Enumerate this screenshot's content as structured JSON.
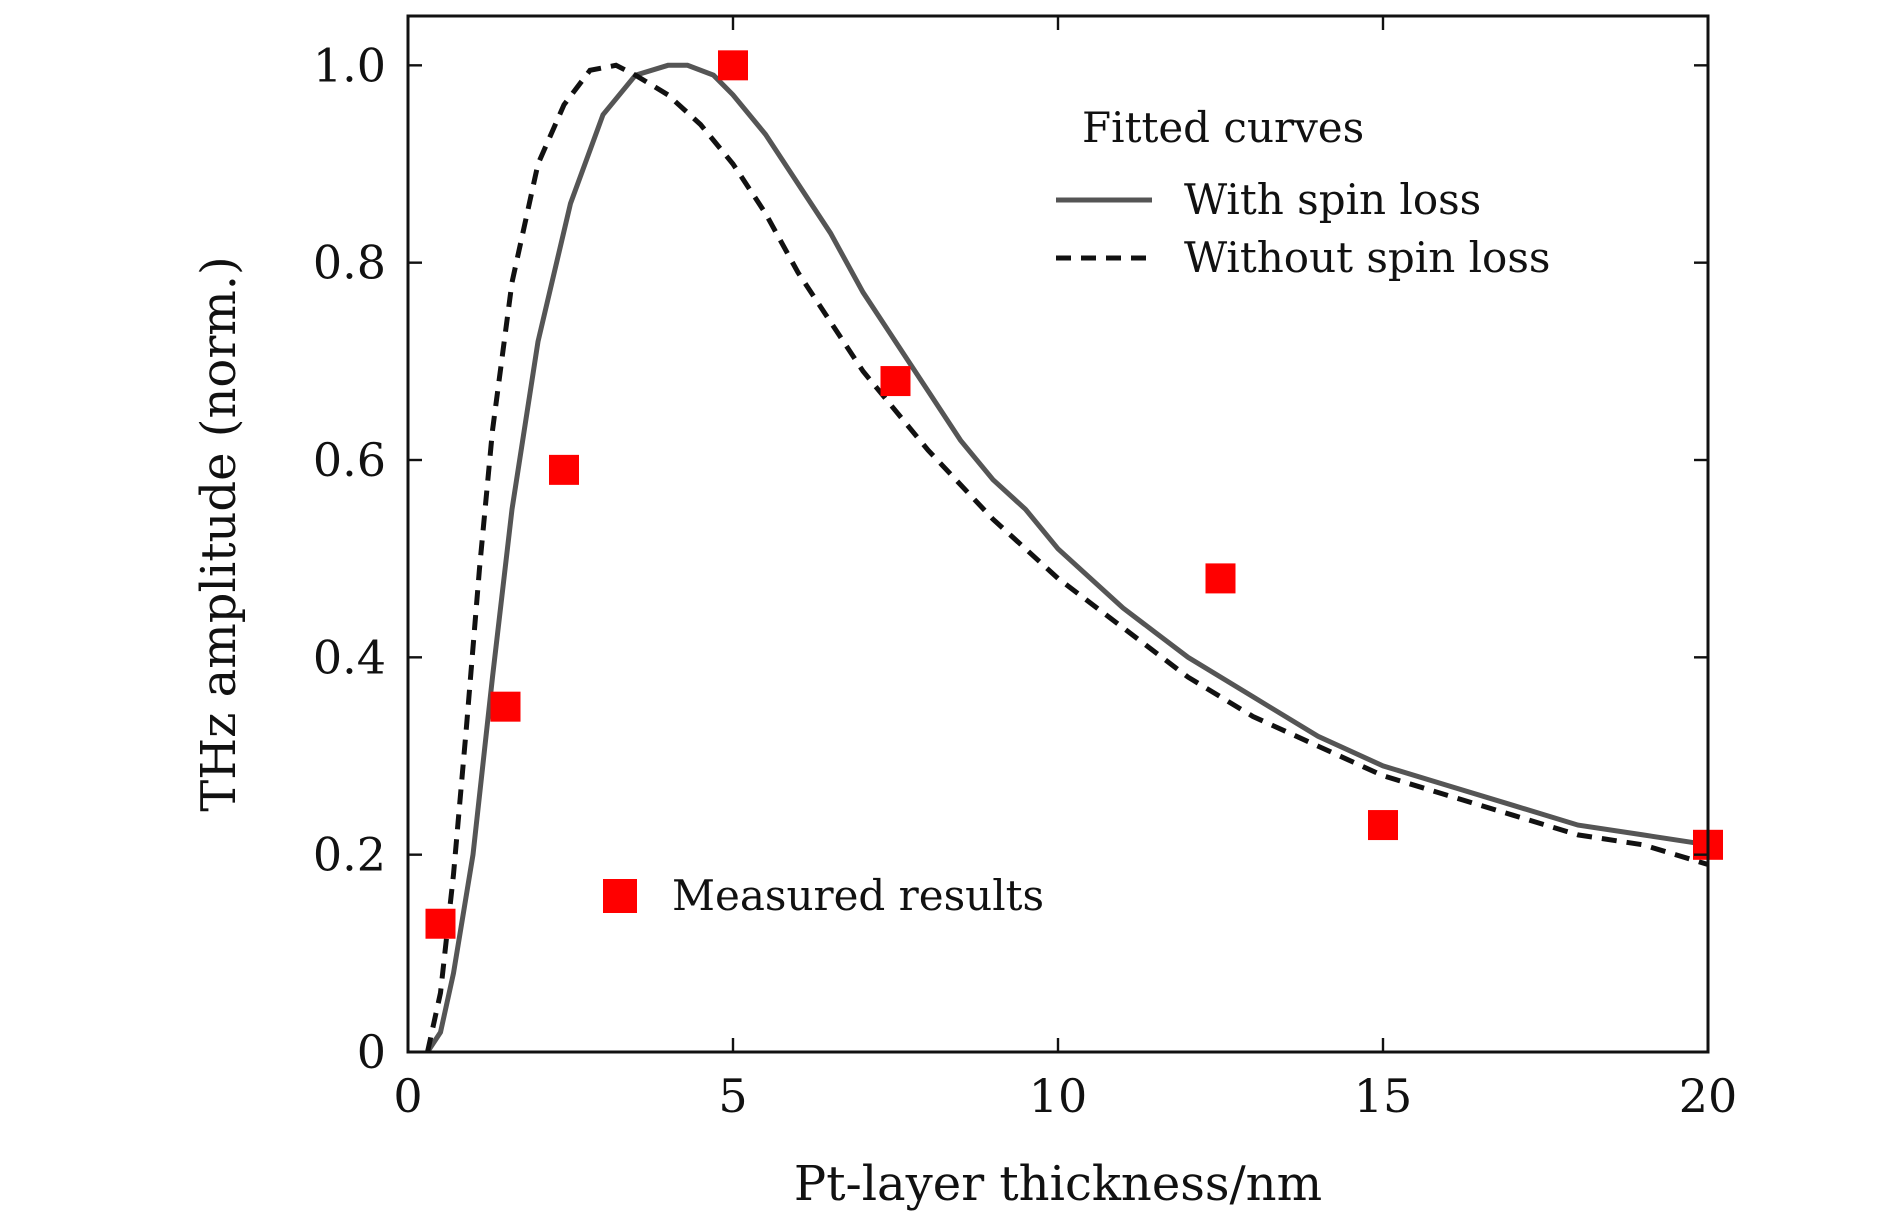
{
  "chart_data": {
    "type": "scatter",
    "xlabel": "Pt-layer thickness/nm",
    "ylabel": "THz amplitude (norm.)",
    "xlim": [
      0,
      20
    ],
    "ylim": [
      0,
      1.05
    ],
    "x_ticks": [
      0,
      5,
      10,
      15,
      20
    ],
    "x_tick_labels": [
      "0",
      "5",
      "10",
      "15",
      "20"
    ],
    "y_ticks": [
      0,
      0.2,
      0.4,
      0.6,
      0.8,
      1.0
    ],
    "y_tick_labels": [
      "0",
      "0.2",
      "0.4",
      "0.6",
      "0.8",
      "1.0"
    ],
    "grid": false,
    "legend": {
      "title": "Fitted curves",
      "placement": "top-right",
      "entries": [
        "With spin loss",
        "Without spin loss"
      ]
    },
    "scatter_legend": {
      "placement": "bottom-left",
      "label": "Measured results"
    },
    "series": [
      {
        "name": "With spin loss",
        "kind": "line",
        "style": "solid",
        "color": "#555555",
        "x": [
          0.3,
          0.5,
          0.7,
          1.0,
          1.3,
          1.6,
          2.0,
          2.5,
          3.0,
          3.5,
          4.0,
          4.3,
          4.7,
          5.0,
          5.5,
          6.0,
          6.5,
          7.0,
          7.5,
          8.0,
          8.5,
          9.0,
          9.5,
          10.0,
          11.0,
          12.0,
          13.0,
          14.0,
          15.0,
          16.0,
          17.0,
          18.0,
          19.0,
          20.0
        ],
        "y": [
          0.0,
          0.02,
          0.08,
          0.2,
          0.38,
          0.55,
          0.72,
          0.86,
          0.95,
          0.99,
          1.0,
          1.0,
          0.99,
          0.97,
          0.93,
          0.88,
          0.83,
          0.77,
          0.72,
          0.67,
          0.62,
          0.58,
          0.55,
          0.51,
          0.45,
          0.4,
          0.36,
          0.32,
          0.29,
          0.27,
          0.25,
          0.23,
          0.22,
          0.21
        ]
      },
      {
        "name": "Without spin loss",
        "kind": "line",
        "style": "dashed",
        "color": "#111111",
        "x": [
          0.3,
          0.5,
          0.7,
          0.9,
          1.1,
          1.3,
          1.6,
          2.0,
          2.4,
          2.8,
          3.2,
          3.5,
          4.0,
          4.5,
          5.0,
          5.5,
          6.0,
          6.5,
          7.0,
          7.5,
          8.0,
          9.0,
          10.0,
          11.0,
          12.0,
          13.0,
          14.0,
          15.0,
          16.0,
          17.0,
          18.0,
          19.0,
          20.0
        ],
        "y": [
          0.0,
          0.06,
          0.18,
          0.33,
          0.49,
          0.63,
          0.78,
          0.9,
          0.96,
          0.995,
          1.0,
          0.99,
          0.97,
          0.94,
          0.9,
          0.85,
          0.79,
          0.74,
          0.69,
          0.65,
          0.61,
          0.54,
          0.48,
          0.43,
          0.38,
          0.34,
          0.31,
          0.28,
          0.26,
          0.24,
          0.22,
          0.21,
          0.19
        ]
      },
      {
        "name": "Measured results",
        "kind": "scatter",
        "marker": "square",
        "color": "#ff0000",
        "x": [
          0.5,
          1.5,
          2.4,
          5.0,
          7.5,
          12.5,
          15.0,
          20.0
        ],
        "y": [
          0.13,
          0.35,
          0.59,
          1.0,
          0.68,
          0.48,
          0.23,
          0.21
        ]
      }
    ]
  }
}
